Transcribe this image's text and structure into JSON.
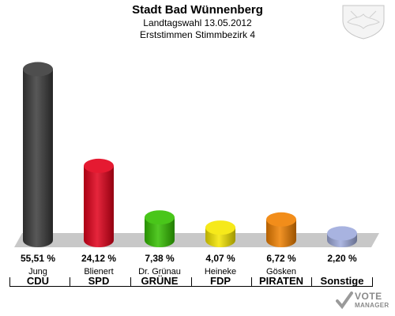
{
  "title": "Stadt Bad Wünnenberg",
  "subtitle": "Landtagswahl 13.05.2012",
  "subtitle2": "Erststimmen Stimmbezirk 4",
  "logo": {
    "line1": "VOTE",
    "line2": "MANAGER"
  },
  "chart_data": {
    "type": "bar",
    "ylim": [
      0,
      60
    ],
    "categories": [
      "CDU",
      "SPD",
      "GRÜNE",
      "FDP",
      "PIRATEN",
      "Sonstige"
    ],
    "candidates": [
      "Jung",
      "Blienert",
      "Dr. Grünau",
      "Heineke",
      "Gösken",
      ""
    ],
    "values": [
      55.51,
      24.12,
      7.38,
      4.07,
      6.72,
      2.2
    ],
    "value_labels": [
      "55,51 %",
      "24,12 %",
      "7,38 %",
      "4,07 %",
      "6,72 %",
      "2,20 %"
    ],
    "colors": [
      "#3a3a3a",
      "#e2001a",
      "#35c000",
      "#f5e600",
      "#f08000",
      "#9eaadc"
    ]
  }
}
